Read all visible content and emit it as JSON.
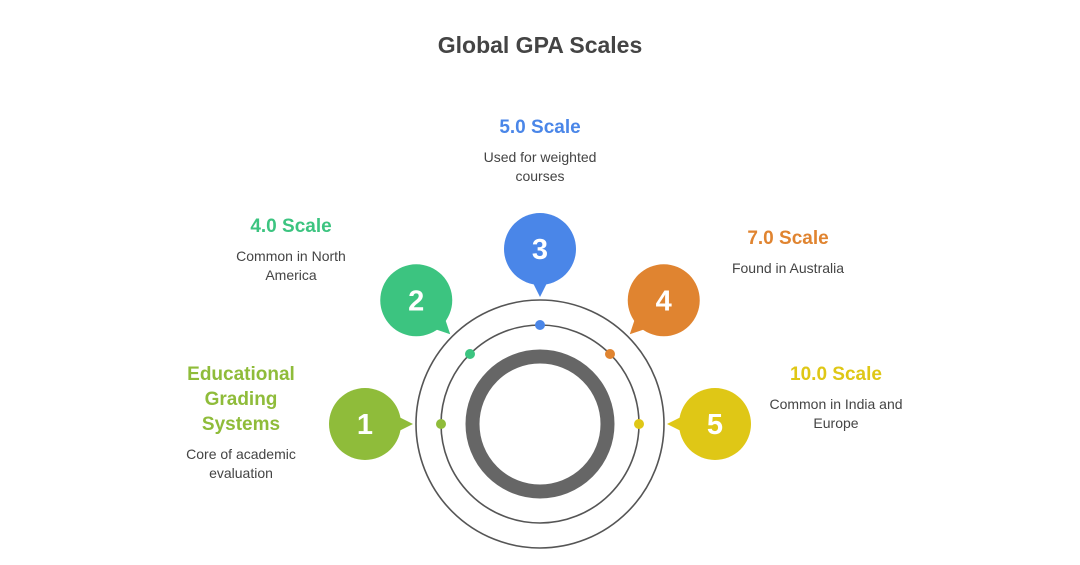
{
  "title": "Global GPA Scales",
  "items": [
    {
      "number": "1",
      "title": "Educational Grading Systems",
      "description": "Core of academic evaluation",
      "color": "#8FBC3A"
    },
    {
      "number": "2",
      "title": "4.0 Scale",
      "description": "Common in North America",
      "color": "#3CC480"
    },
    {
      "number": "3",
      "title": "5.0 Scale",
      "description": "Used for weighted courses",
      "color": "#4A86E8"
    },
    {
      "number": "4",
      "title": "7.0 Scale",
      "description": "Found in Australia",
      "color": "#E08430"
    },
    {
      "number": "5",
      "title": "10.0 Scale",
      "description": "Common in India and Europe",
      "color": "#DFC716"
    }
  ],
  "ring_color": "#666666"
}
